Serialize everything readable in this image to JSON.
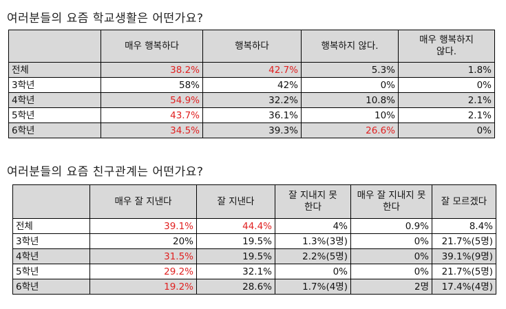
{
  "table1": {
    "title": "여러분들의 요즘 학교생활은 어떤가요?",
    "headers": [
      "",
      "매우 행복하다",
      "행복하다",
      "행복하지 않다.",
      "매우 행복하지 않다."
    ],
    "rows": [
      {
        "label": "전체",
        "values": [
          "38.2%",
          "42.7%",
          "5.3%",
          "1.8%"
        ],
        "shaded": true,
        "red": [
          true,
          true,
          false,
          false
        ]
      },
      {
        "label": "3학년",
        "values": [
          "58%",
          "42%",
          "0%",
          "0%"
        ],
        "shaded": false,
        "red": [
          false,
          false,
          false,
          false
        ]
      },
      {
        "label": "4학년",
        "values": [
          "54.9%",
          "32.2%",
          "10.8%",
          "2.1%"
        ],
        "shaded": true,
        "red": [
          true,
          false,
          false,
          false
        ]
      },
      {
        "label": "5학년",
        "values": [
          "43.7%",
          "36.1%",
          "10%",
          "2.1%"
        ],
        "shaded": false,
        "red": [
          true,
          false,
          false,
          false
        ]
      },
      {
        "label": "6학년",
        "values": [
          "34.5%",
          "39.3%",
          "26.6%",
          "0%"
        ],
        "shaded": true,
        "red": [
          true,
          false,
          true,
          false
        ]
      }
    ]
  },
  "table2": {
    "title": "여러분들의 요즘 친구관계는 어떤가요?",
    "headers": [
      "",
      "매우 잘 지낸다",
      "잘 지낸다",
      "잘 지내지 못한다",
      "매우 잘 지내지 못한다",
      "잘 모르겠다"
    ],
    "rows": [
      {
        "label": "전체",
        "values": [
          "39.1%",
          "44.4%",
          "4%",
          "0.9%",
          "8.4%"
        ],
        "shaded": false,
        "red": [
          true,
          true,
          false,
          false,
          false
        ]
      },
      {
        "label": "3학년",
        "values": [
          "20%",
          "19.5%",
          "1.3%(3명)",
          "0%",
          "21.7%(5명)"
        ],
        "shaded": false,
        "red": [
          false,
          false,
          false,
          false,
          false
        ]
      },
      {
        "label": "4학년",
        "values": [
          "31.5%",
          "19.5%",
          "2.2%(5명)",
          "0%",
          "39.1%(9명)"
        ],
        "shaded": true,
        "red": [
          true,
          false,
          false,
          false,
          false
        ]
      },
      {
        "label": "5학년",
        "values": [
          "29.2%",
          "32.1%",
          "0%",
          "0%",
          "21.7%(5명)"
        ],
        "shaded": false,
        "red": [
          true,
          false,
          false,
          false,
          false
        ]
      },
      {
        "label": "6학년",
        "values": [
          "19.2%",
          "28.6%",
          "1.7%(4명)",
          "2명",
          "17.4%(4명)"
        ],
        "shaded": true,
        "red": [
          true,
          false,
          false,
          false,
          false
        ]
      }
    ]
  },
  "colors": {
    "highlight": "#e02020",
    "shade": "#d9d9d9"
  }
}
